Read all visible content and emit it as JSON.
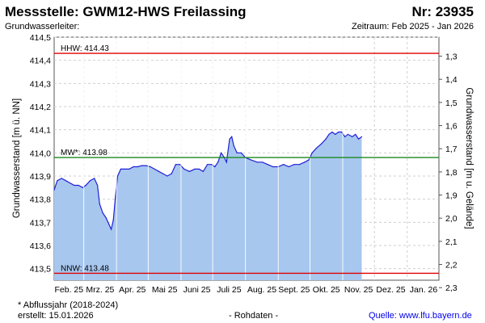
{
  "header": {
    "title_left": "Messstelle: GWM12-HWS Freilassing",
    "title_right": "Nr: 23935",
    "subtitle_left": "Grundwasserleiter:",
    "subtitle_right": "Zeitraum: Feb 2025 - Jan 2026"
  },
  "footer": {
    "note": "* Abflussjahr (2018-2024)",
    "created": "erstellt:  15.01.2026",
    "raw": "- Rohdaten -",
    "source_label": "Quelle: ",
    "source_link": "www.lfu.bayern.de"
  },
  "colors": {
    "fill": "#a7c7ef",
    "line": "#1f1fd6",
    "extreme": "#e00000",
    "mean": "#1a8a1a",
    "grid": "#cfcfcf",
    "monthline": "#ffffff",
    "link": "#0000ee"
  },
  "chart_data": {
    "type": "area",
    "grid": true,
    "ylabel": "Grundwasserstand [m ü. NN]",
    "y2label": "Grundwasserstand [m u. Gelände]",
    "ylim": [
      413.45,
      414.5
    ],
    "yticks": [
      "414,5",
      "414,4",
      "414,3",
      "414,2",
      "414,1",
      "414,0",
      "413,9",
      "413,8",
      "413,7",
      "413,6",
      "413,5"
    ],
    "ytick_values": [
      414.5,
      414.4,
      414.3,
      414.2,
      414.1,
      414.0,
      413.9,
      413.8,
      413.7,
      413.6,
      413.5
    ],
    "y2ticks": [
      "1,3",
      "1,4",
      "1,5",
      "1,6",
      "1,7",
      "1,8",
      "1,9",
      "2,0",
      "2,1",
      "2,2",
      "2,3"
    ],
    "y2tick_ground_values": [
      414.4179,
      414.3179,
      414.2179,
      414.1179,
      414.0179,
      413.9179,
      413.8179,
      413.7179,
      413.6179,
      413.5179,
      413.4179
    ],
    "xticks": [
      "Feb. 25",
      "Mrz. 25",
      "Apr. 25",
      "Mai 25",
      "Juni 25",
      "Juli 25",
      "Aug. 25",
      "Sept. 25",
      "Okt. 25",
      "Nov. 25",
      "Dez. 25",
      "Jan. 26"
    ],
    "x_start": "2025-02-01",
    "x_end": "2026-01-31",
    "reference_lines": [
      {
        "label": "HHW: 414.43",
        "value": 414.43,
        "kind": "extreme"
      },
      {
        "label": "MW*: 413.98",
        "value": 413.98,
        "kind": "mean"
      },
      {
        "label": "NNW: 413.48",
        "value": 413.48,
        "kind": "extreme"
      }
    ],
    "series": [
      {
        "points": [
          [
            "2025-02-01",
            413.84
          ],
          [
            "2025-02-04",
            413.88
          ],
          [
            "2025-02-08",
            413.89
          ],
          [
            "2025-02-12",
            413.88
          ],
          [
            "2025-02-16",
            413.87
          ],
          [
            "2025-02-20",
            413.86
          ],
          [
            "2025-02-24",
            413.86
          ],
          [
            "2025-02-28",
            413.85
          ],
          [
            "2025-03-03",
            413.86
          ],
          [
            "2025-03-07",
            413.88
          ],
          [
            "2025-03-11",
            413.89
          ],
          [
            "2025-03-14",
            413.86
          ],
          [
            "2025-03-16",
            413.78
          ],
          [
            "2025-03-19",
            413.74
          ],
          [
            "2025-03-22",
            413.72
          ],
          [
            "2025-03-25",
            413.69
          ],
          [
            "2025-03-27",
            413.67
          ],
          [
            "2025-03-29",
            413.71
          ],
          [
            "2025-03-31",
            413.81
          ],
          [
            "2025-04-02",
            413.9
          ],
          [
            "2025-04-05",
            413.93
          ],
          [
            "2025-04-09",
            413.93
          ],
          [
            "2025-04-13",
            413.93
          ],
          [
            "2025-04-17",
            413.94
          ],
          [
            "2025-04-21",
            413.94
          ],
          [
            "2025-04-25",
            413.945
          ],
          [
            "2025-04-29",
            413.945
          ],
          [
            "2025-05-03",
            413.94
          ],
          [
            "2025-05-07",
            413.93
          ],
          [
            "2025-05-11",
            413.92
          ],
          [
            "2025-05-15",
            413.91
          ],
          [
            "2025-05-19",
            413.9
          ],
          [
            "2025-05-23",
            413.91
          ],
          [
            "2025-05-27",
            413.95
          ],
          [
            "2025-05-31",
            413.95
          ],
          [
            "2025-06-04",
            413.93
          ],
          [
            "2025-06-09",
            413.92
          ],
          [
            "2025-06-14",
            413.93
          ],
          [
            "2025-06-18",
            413.93
          ],
          [
            "2025-06-22",
            413.92
          ],
          [
            "2025-06-26",
            413.95
          ],
          [
            "2025-06-30",
            413.95
          ],
          [
            "2025-07-03",
            413.94
          ],
          [
            "2025-07-06",
            413.96
          ],
          [
            "2025-07-09",
            414.0
          ],
          [
            "2025-07-12",
            413.98
          ],
          [
            "2025-07-14",
            413.96
          ],
          [
            "2025-07-17",
            414.06
          ],
          [
            "2025-07-19",
            414.07
          ],
          [
            "2025-07-21",
            414.03
          ],
          [
            "2025-07-24",
            414.0
          ],
          [
            "2025-07-28",
            414.0
          ],
          [
            "2025-08-01",
            413.98
          ],
          [
            "2025-08-06",
            413.97
          ],
          [
            "2025-08-12",
            413.96
          ],
          [
            "2025-08-17",
            413.96
          ],
          [
            "2025-08-22",
            413.95
          ],
          [
            "2025-08-27",
            413.94
          ],
          [
            "2025-09-01",
            413.94
          ],
          [
            "2025-09-06",
            413.95
          ],
          [
            "2025-09-11",
            413.94
          ],
          [
            "2025-09-16",
            413.95
          ],
          [
            "2025-09-21",
            413.95
          ],
          [
            "2025-09-26",
            413.96
          ],
          [
            "2025-09-30",
            413.97
          ],
          [
            "2025-10-03",
            414.0
          ],
          [
            "2025-10-07",
            414.02
          ],
          [
            "2025-10-12",
            414.04
          ],
          [
            "2025-10-16",
            414.06
          ],
          [
            "2025-10-19",
            414.08
          ],
          [
            "2025-10-22",
            414.09
          ],
          [
            "2025-10-25",
            414.08
          ],
          [
            "2025-10-28",
            414.09
          ],
          [
            "2025-10-31",
            414.09
          ],
          [
            "2025-11-03",
            414.07
          ],
          [
            "2025-11-06",
            414.08
          ],
          [
            "2025-11-10",
            414.07
          ],
          [
            "2025-11-13",
            414.08
          ],
          [
            "2025-11-16",
            414.06
          ],
          [
            "2025-11-19",
            414.07
          ]
        ]
      }
    ]
  }
}
